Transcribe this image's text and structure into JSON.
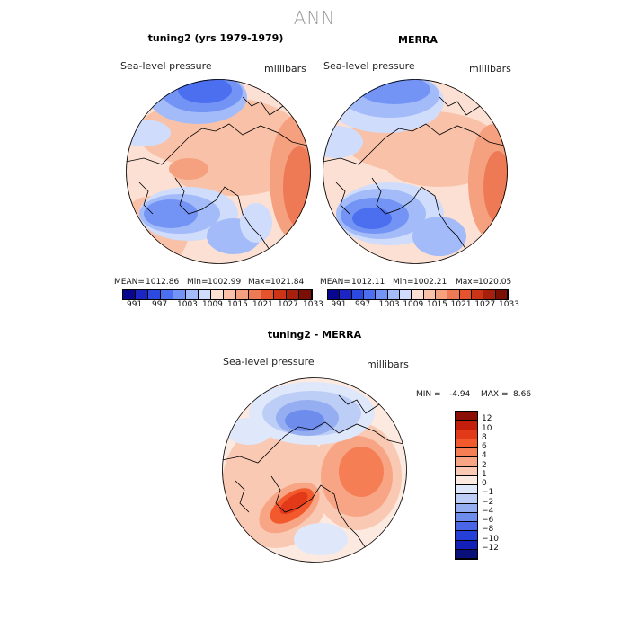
{
  "page": {
    "title": "ANN"
  },
  "panel_model": {
    "title": "tuning2 (yrs 1979-1979)",
    "variable": "Sea-level pressure",
    "units": "millibars",
    "mean_label": "MEAN=",
    "mean": "1012.86",
    "min_label": "Min=",
    "min": "1002.99",
    "max_label": "Max=",
    "max": "1021.84"
  },
  "panel_obs": {
    "title": "MERRA",
    "variable": "Sea-level pressure",
    "units": "millibars",
    "mean_label": "MEAN=",
    "mean": "1012.11",
    "min_label": "Min=",
    "min": "1002.21",
    "max_label": "Max=",
    "max": "1020.05"
  },
  "colorbar_abs": {
    "ticks": [
      "991",
      "997",
      "1003",
      "1009",
      "1015",
      "1021",
      "1027",
      "1033"
    ],
    "colors": [
      "#08068f",
      "#1a25c4",
      "#2d4ae0",
      "#4c6ff0",
      "#7494f5",
      "#a3bbf8",
      "#cfdcfb",
      "#fbe0d3",
      "#f9c2a8",
      "#f5a07e",
      "#ee7a55",
      "#e4532e",
      "#cc3417",
      "#a6200d",
      "#7a0f06"
    ]
  },
  "panel_diff": {
    "title": "tuning2 - MERRA",
    "variable": "Sea-level pressure",
    "units": "millibars",
    "min_label": "MIN =",
    "min": "-4.94",
    "max_label": "MAX =",
    "max": "8.66"
  },
  "colorbar_diff": {
    "ticks": [
      "12",
      "10",
      "8",
      "6",
      "4",
      "2",
      "1",
      "0",
      "−1",
      "−2",
      "−4",
      "−6",
      "−8",
      "−10",
      "−12"
    ],
    "colors": [
      "#8c0f06",
      "#c31f0c",
      "#e23a18",
      "#f25a2e",
      "#f57e55",
      "#f7a585",
      "#f9c9b4",
      "#fce9df",
      "#dfe7fb",
      "#bccdf6",
      "#94aef1",
      "#6e8cec",
      "#4a66e6",
      "#2540d8",
      "#1220b8",
      "#09107a"
    ]
  }
}
